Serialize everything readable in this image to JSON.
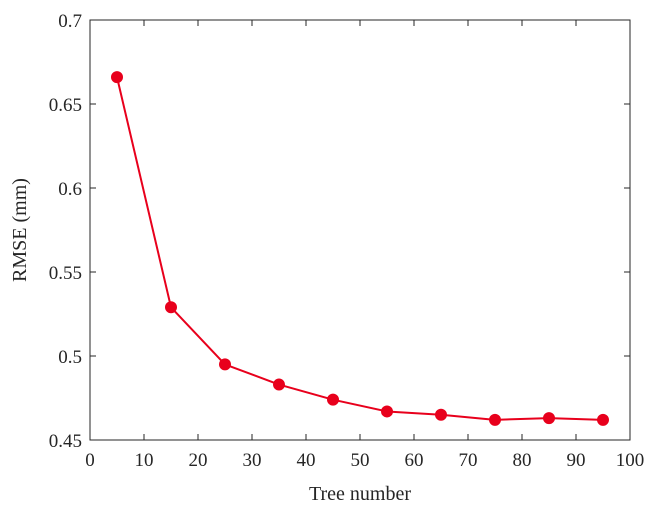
{
  "chart_data": {
    "type": "line",
    "title": "",
    "xlabel": "Tree number",
    "ylabel": "RMSE (mm)",
    "xlim": [
      0,
      100
    ],
    "ylim": [
      0.45,
      0.7
    ],
    "xticks": [
      0,
      10,
      20,
      30,
      40,
      50,
      60,
      70,
      80,
      90,
      100
    ],
    "yticks": [
      0.45,
      0.5,
      0.55,
      0.6,
      0.65,
      0.7
    ],
    "xtick_labels": [
      "0",
      "10",
      "20",
      "30",
      "40",
      "50",
      "60",
      "70",
      "80",
      "90",
      "100"
    ],
    "ytick_labels": [
      "0.45",
      "0.5",
      "0.55",
      "0.6",
      "0.65",
      "0.7"
    ],
    "grid": false,
    "box": true,
    "series": [
      {
        "color": "#e8001c",
        "marker": "circle",
        "x": [
          5,
          15,
          25,
          35,
          45,
          55,
          65,
          75,
          85,
          95
        ],
        "y": [
          0.666,
          0.529,
          0.495,
          0.483,
          0.474,
          0.467,
          0.465,
          0.462,
          0.463,
          0.462
        ]
      }
    ]
  }
}
